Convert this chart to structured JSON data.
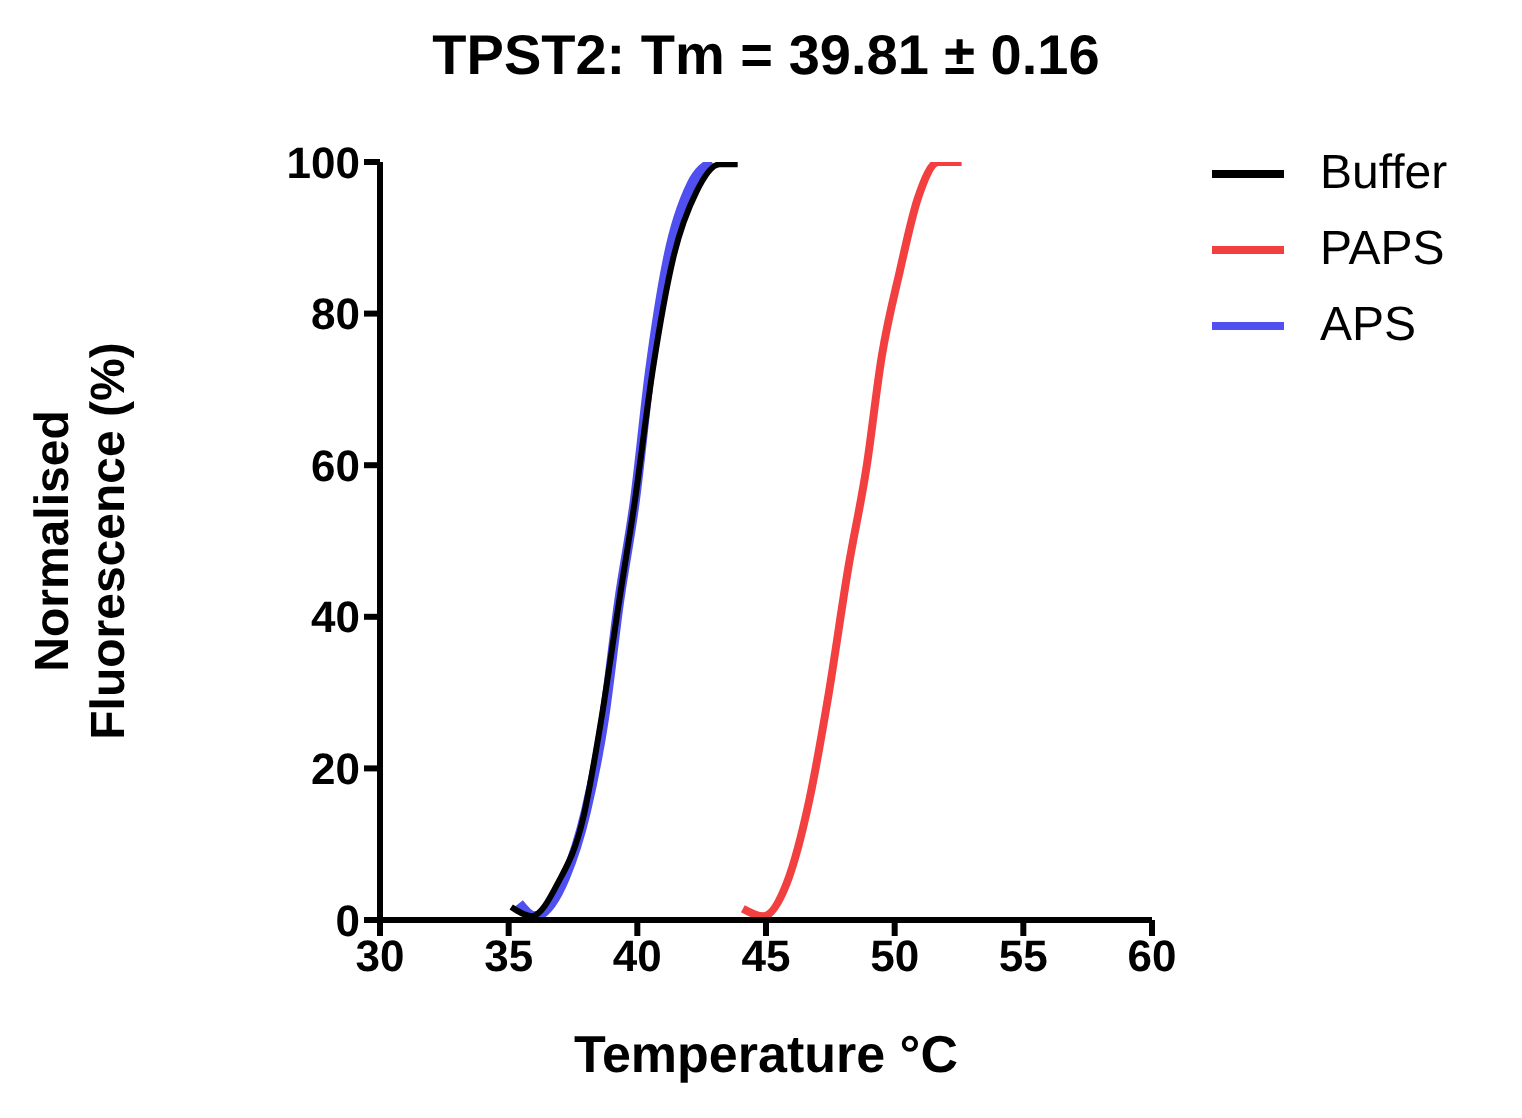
{
  "chart_data": {
    "type": "line",
    "title": "TPST2: Tm = 39.81 ± 0.16",
    "xlabel": "Temperature °C",
    "ylabel": "Normalised\nFluorescence (%)",
    "xlim": [
      30,
      60
    ],
    "xticks": [
      30,
      35,
      40,
      45,
      50,
      55,
      60
    ],
    "ylim": [
      0,
      100
    ],
    "yticks": [
      0,
      20,
      40,
      60,
      80,
      100
    ],
    "grid": false,
    "legend": "top right",
    "marker": "none",
    "line_style": "solid",
    "series": [
      {
        "name": "Buffer",
        "color": "#000000",
        "x": [
          35.1,
          35.9,
          36.9,
          37.9,
          38.6,
          39.3,
          39.9,
          40.6,
          41.4,
          42.3,
          43.2,
          43.9
        ],
        "values": [
          1.7,
          0.5,
          4.8,
          13.5,
          26.5,
          42.2,
          55.2,
          72.6,
          87.4,
          96.1,
          99.7,
          99.7
        ]
      },
      {
        "name": "PAPS",
        "color": "#f24040",
        "x": [
          44.1,
          44.9,
          45.8,
          46.7,
          47.4,
          48.2,
          48.9,
          49.5,
          50.2,
          50.9,
          51.7,
          52.6
        ],
        "values": [
          1.5,
          0.5,
          4.8,
          16.1,
          29.1,
          46.5,
          59.6,
          74.4,
          85.6,
          95.2,
          100,
          100
        ]
      },
      {
        "name": "APS",
        "color": "#5050f0",
        "x": [
          35.4,
          36.0,
          37.2,
          38.0,
          38.7,
          39.3,
          39.9,
          40.5,
          41.2,
          42.1,
          42.9
        ],
        "values": [
          2.2,
          0.5,
          5.7,
          14.3,
          26.5,
          42.2,
          55.2,
          72.6,
          87.4,
          97,
          100
        ]
      }
    ]
  }
}
